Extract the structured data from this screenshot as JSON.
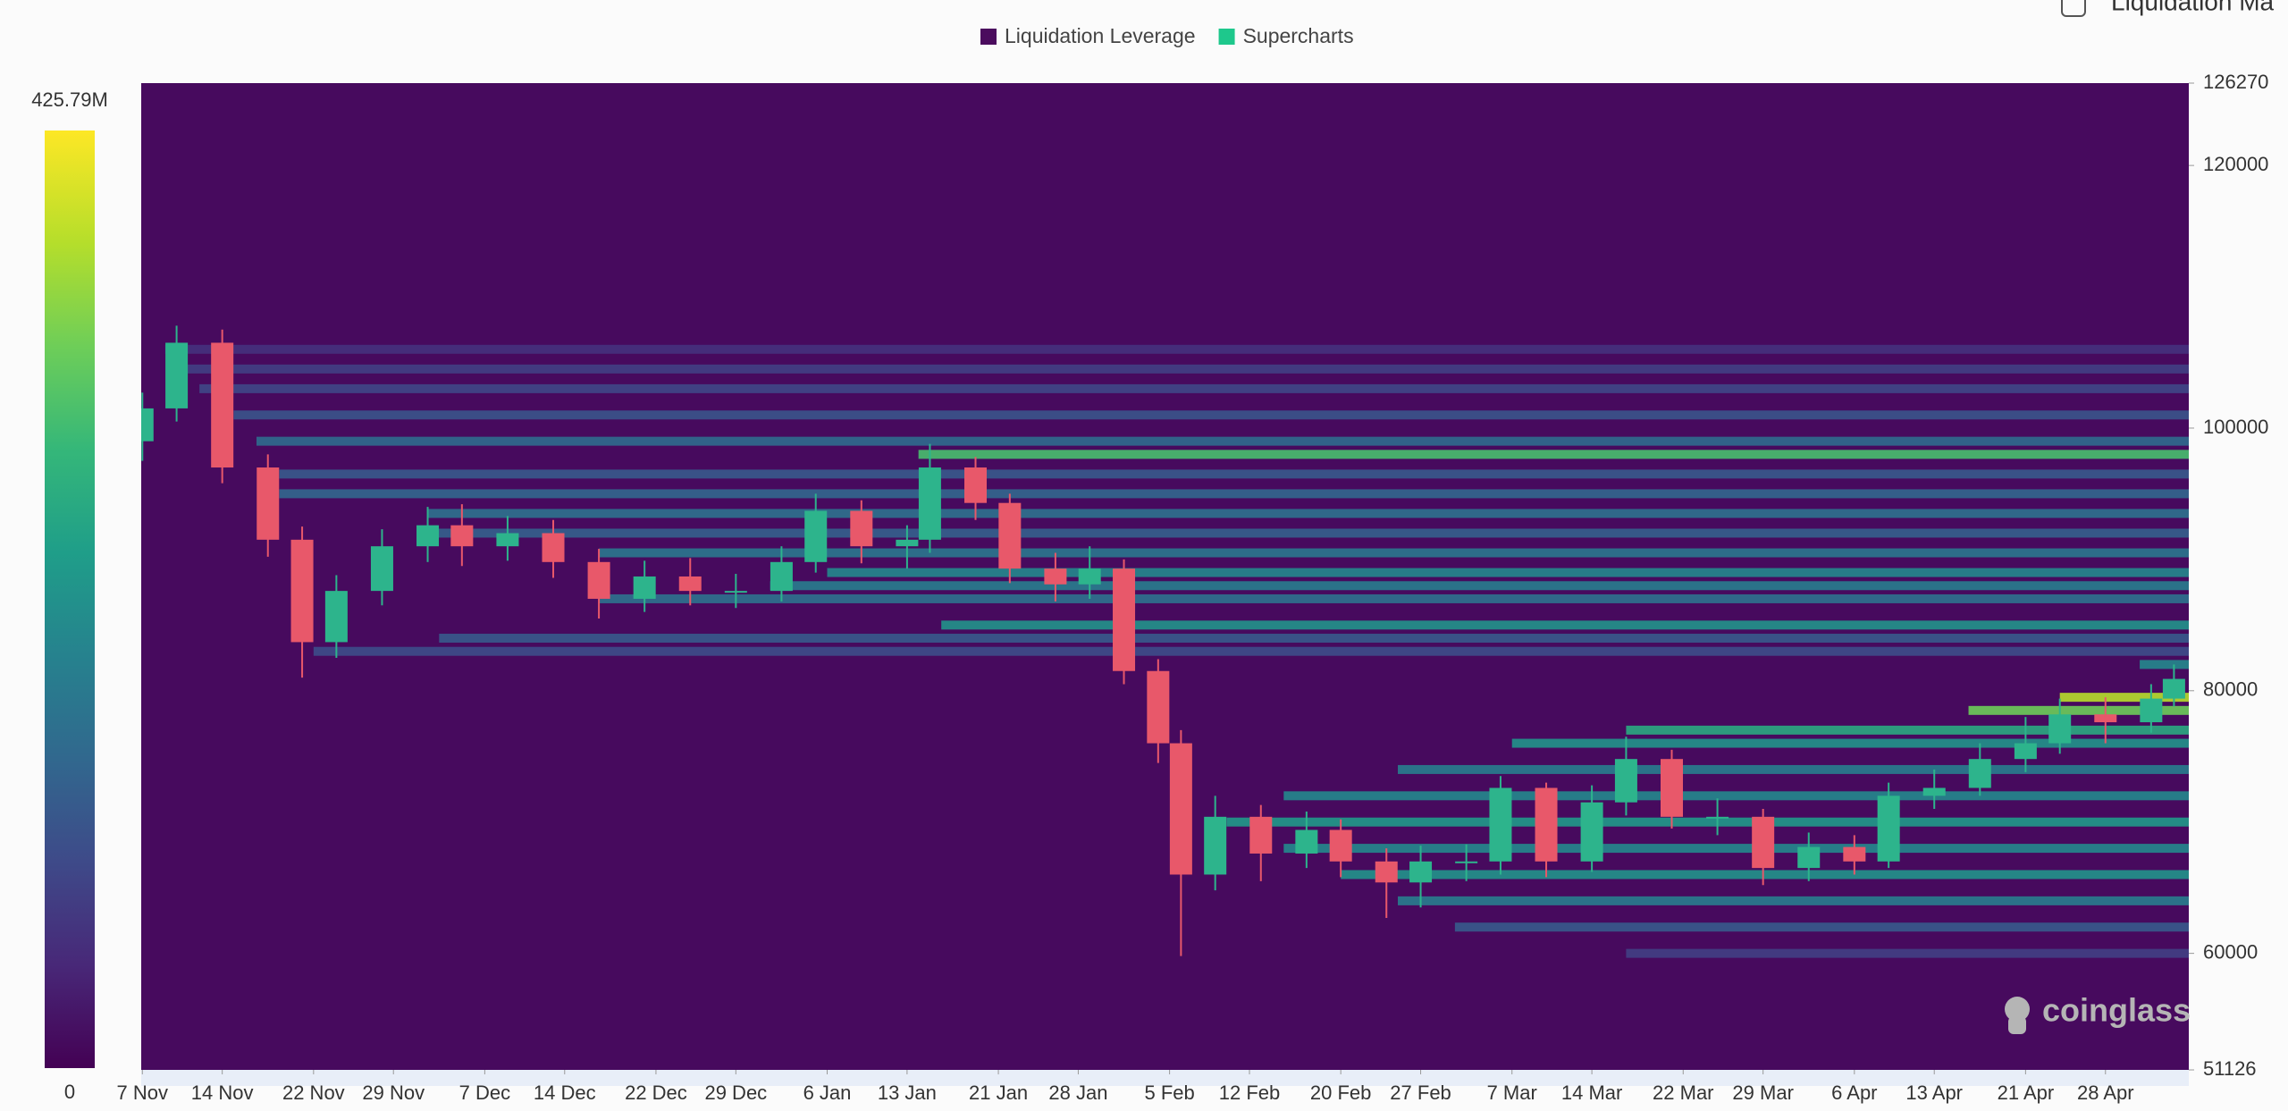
{
  "chart_data": {
    "type": "liquidation-heatmap",
    "legend": [
      {
        "name": "Liquidation Leverage",
        "color": "#4b0c5e"
      },
      {
        "name": "Supercharts",
        "color": "#1ec88c"
      }
    ],
    "toggle_label": "Liquidation Ma",
    "watermark": "coinglass",
    "xlim": [
      -0.1,
      179.3
    ],
    "xticks": [
      {
        "value": 0,
        "label": "7 Nov"
      },
      {
        "value": 7,
        "label": "14 Nov"
      },
      {
        "value": 15,
        "label": "22 Nov"
      },
      {
        "value": 22,
        "label": "29 Nov"
      },
      {
        "value": 30,
        "label": "7 Dec"
      },
      {
        "value": 37,
        "label": "14 Dec"
      },
      {
        "value": 45,
        "label": "22 Dec"
      },
      {
        "value": 52,
        "label": "29 Dec"
      },
      {
        "value": 60,
        "label": "6 Jan"
      },
      {
        "value": 67,
        "label": "13 Jan"
      },
      {
        "value": 75,
        "label": "21 Jan"
      },
      {
        "value": 82,
        "label": "28 Jan"
      },
      {
        "value": 90,
        "label": "5 Feb"
      },
      {
        "value": 97,
        "label": "12 Feb"
      },
      {
        "value": 105,
        "label": "20 Feb"
      },
      {
        "value": 112,
        "label": "27 Feb"
      },
      {
        "value": 120,
        "label": "7 Mar"
      },
      {
        "value": 127,
        "label": "14 Mar"
      },
      {
        "value": 135,
        "label": "22 Mar"
      },
      {
        "value": 142,
        "label": "29 Mar"
      },
      {
        "value": 150,
        "label": "6 Apr"
      },
      {
        "value": 157,
        "label": "13 Apr"
      },
      {
        "value": 165,
        "label": "21 Apr"
      },
      {
        "value": 172,
        "label": "28 Apr"
      }
    ],
    "ylim": [
      51126,
      126270
    ],
    "yticks": [
      126270,
      120000,
      100000,
      80000,
      60000,
      51126
    ],
    "colorbar_lim": [
      0,
      425.79
    ],
    "colorbar_ticks": [
      0,
      {
        "value": 425.79,
        "label": "425.79M"
      }
    ],
    "up_color": "#2db48c",
    "down_color": "#e8586a",
    "heatmap": [
      {
        "price": 106000,
        "start": 2,
        "value": 60
      },
      {
        "price": 104500,
        "start": 3,
        "value": 80
      },
      {
        "price": 103000,
        "start": 5,
        "value": 90
      },
      {
        "price": 101000,
        "start": 8,
        "value": 110
      },
      {
        "price": 99000,
        "start": 10,
        "value": 150
      },
      {
        "price": 98000,
        "start": 68,
        "value": 300
      },
      {
        "price": 96500,
        "start": 12,
        "value": 120
      },
      {
        "price": 95000,
        "start": 12,
        "value": 140
      },
      {
        "price": 93500,
        "start": 25,
        "value": 160
      },
      {
        "price": 92000,
        "start": 25,
        "value": 130
      },
      {
        "price": 90500,
        "start": 40,
        "value": 170
      },
      {
        "price": 89000,
        "start": 60,
        "value": 200
      },
      {
        "price": 88000,
        "start": 55,
        "value": 180
      },
      {
        "price": 87000,
        "start": 40,
        "value": 160
      },
      {
        "price": 85000,
        "start": 70,
        "value": 220
      },
      {
        "price": 84000,
        "start": 26,
        "value": 120
      },
      {
        "price": 83000,
        "start": 15,
        "value": 100
      },
      {
        "price": 82000,
        "start": 175,
        "value": 200
      },
      {
        "price": 79500,
        "start": 168,
        "value": 380
      },
      {
        "price": 78500,
        "start": 160,
        "value": 330
      },
      {
        "price": 77000,
        "start": 130,
        "value": 260
      },
      {
        "price": 76000,
        "start": 120,
        "value": 220
      },
      {
        "price": 74000,
        "start": 110,
        "value": 180
      },
      {
        "price": 72000,
        "start": 100,
        "value": 200
      },
      {
        "price": 70000,
        "start": 95,
        "value": 230
      },
      {
        "price": 68000,
        "start": 100,
        "value": 200
      },
      {
        "price": 66000,
        "start": 105,
        "value": 220
      },
      {
        "price": 64000,
        "start": 110,
        "value": 180
      },
      {
        "price": 62000,
        "start": 115,
        "value": 120
      },
      {
        "price": 60000,
        "start": 130,
        "value": 80
      }
    ],
    "series": [
      {
        "x": [
          0,
          3,
          7,
          11,
          14,
          17,
          21,
          25,
          28,
          32,
          36,
          40,
          44,
          48,
          52,
          56,
          59,
          63,
          67,
          69,
          73,
          76,
          80,
          83,
          86,
          89,
          91,
          94,
          98,
          102,
          105,
          109,
          112,
          116,
          119,
          123,
          127,
          130,
          134,
          138,
          142,
          146,
          150,
          153,
          157,
          161,
          165,
          168,
          172,
          176,
          178
        ],
        "open": [
          99000,
          101500,
          106500,
          97000,
          91500,
          83700,
          87600,
          91000,
          92600,
          91000,
          92000,
          89800,
          87000,
          88700,
          87600,
          87600,
          89800,
          93700,
          91000,
          91500,
          97000,
          94300,
          89300,
          88100,
          89300,
          81500,
          76000,
          66000,
          70400,
          67600,
          69400,
          67000,
          65400,
          67000,
          67000,
          72600,
          67000,
          71500,
          74800,
          70400,
          70400,
          66500,
          68100,
          67000,
          72000,
          72600,
          74800,
          76000,
          78200,
          77600,
          79400
        ],
        "high": [
          102700,
          107800,
          107500,
          98000,
          92500,
          88800,
          92300,
          94000,
          94200,
          93300,
          93000,
          90800,
          89900,
          90100,
          88900,
          91000,
          95000,
          94500,
          92600,
          98800,
          97800,
          95000,
          90500,
          91000,
          90000,
          82400,
          77000,
          72000,
          71300,
          70800,
          70200,
          68000,
          68200,
          68300,
          73500,
          73000,
          72800,
          76500,
          75500,
          71800,
          71000,
          69200,
          69000,
          73000,
          74000,
          76000,
          78000,
          79400,
          79500,
          80500,
          82000
        ],
        "low": [
          97500,
          100500,
          95800,
          90200,
          81000,
          82500,
          86500,
          89800,
          89500,
          89900,
          88600,
          85500,
          86000,
          86500,
          86300,
          86800,
          89000,
          89700,
          89300,
          90500,
          93000,
          88200,
          86800,
          87000,
          80500,
          74500,
          59800,
          64800,
          65500,
          66500,
          65800,
          62700,
          63500,
          65500,
          66000,
          65800,
          66200,
          70500,
          69500,
          69000,
          65200,
          65500,
          66000,
          66500,
          71000,
          72000,
          73800,
          75200,
          76000,
          76800,
          78800
        ],
        "close": [
          101500,
          106500,
          97000,
          91500,
          83700,
          87600,
          91000,
          92600,
          91000,
          92000,
          89800,
          87000,
          88700,
          87600,
          87600,
          89800,
          93700,
          91000,
          91500,
          97000,
          94300,
          89300,
          88100,
          89300,
          81500,
          76000,
          66000,
          70400,
          67600,
          69400,
          67000,
          65400,
          67000,
          67000,
          72600,
          67000,
          71500,
          74800,
          70400,
          70400,
          66500,
          68100,
          67000,
          72000,
          72600,
          74800,
          76000,
          78200,
          77600,
          79400,
          80900
        ]
      }
    ]
  }
}
